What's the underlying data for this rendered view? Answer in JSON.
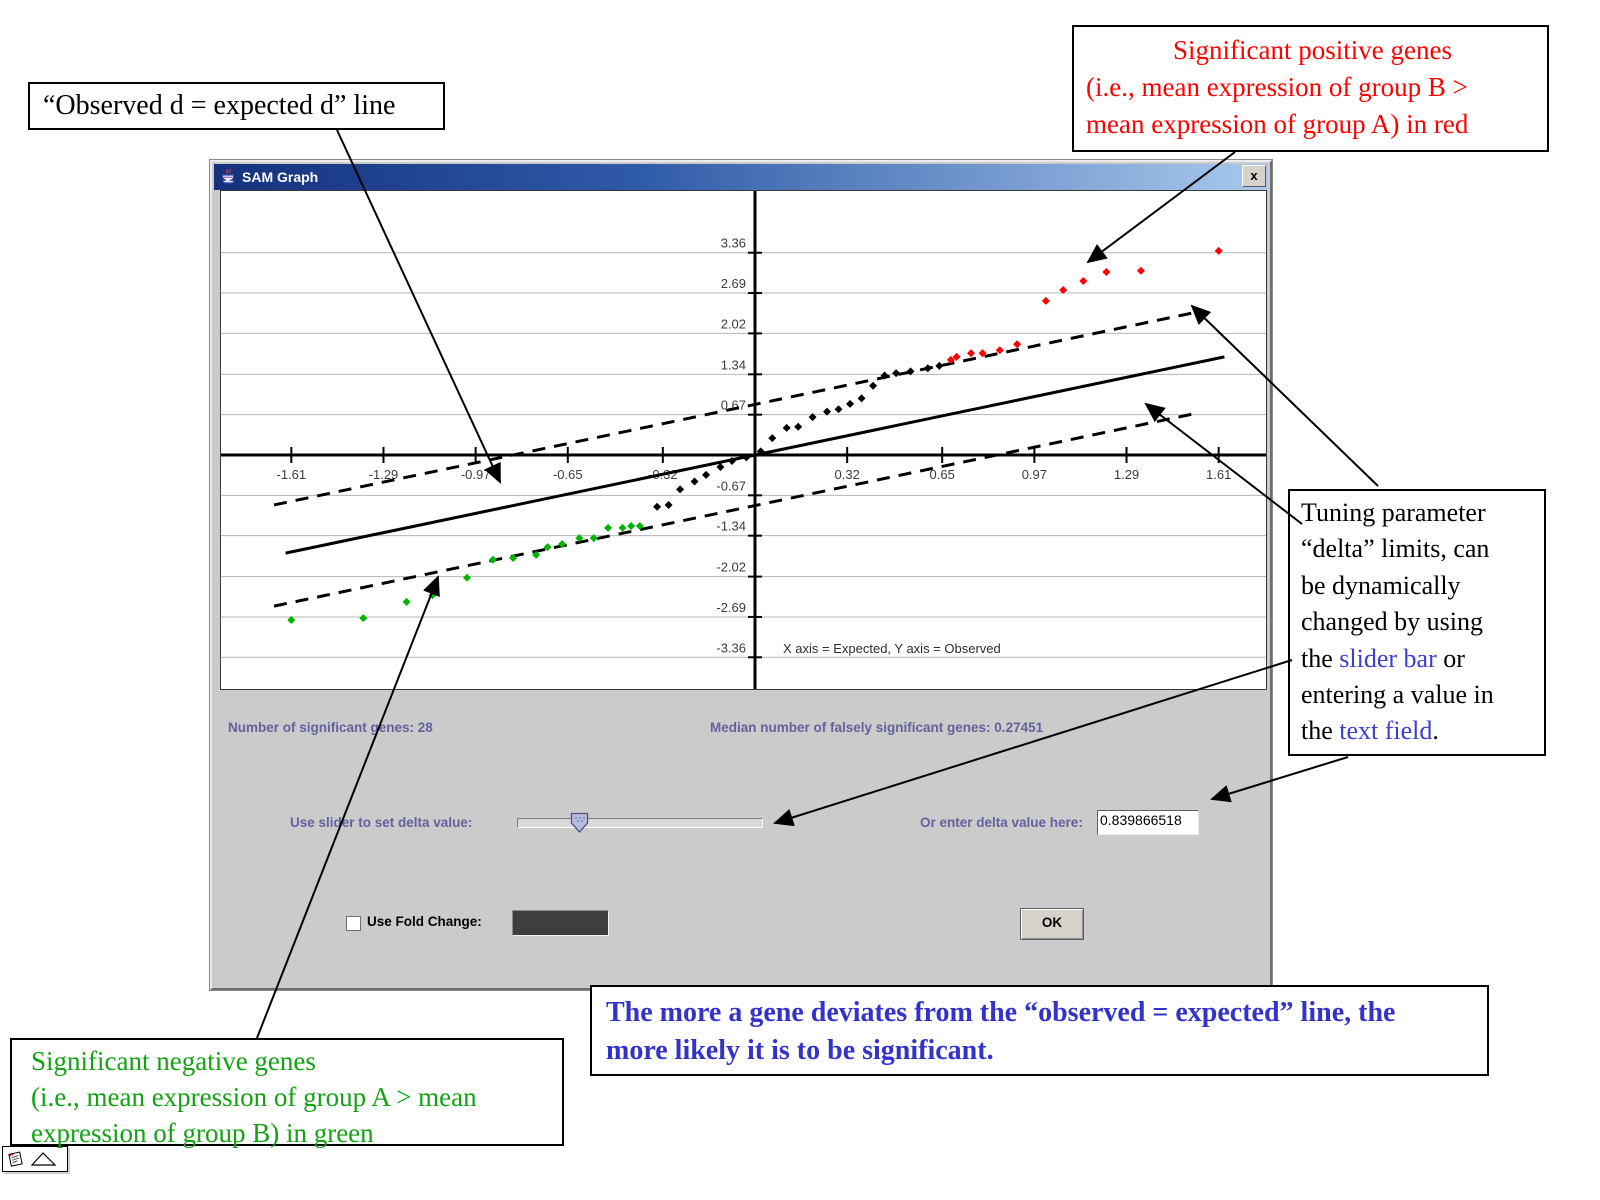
{
  "window": {
    "title": "SAM Graph",
    "close_glyph": "x",
    "stats": {
      "significant": "Number of significant genes: 28",
      "falsely_significant": "Median number of falsely significant genes: 0.27451"
    },
    "slider_label": "Use slider to set delta value:",
    "delta_label": "Or enter delta value here:",
    "delta_value": "0.839866518",
    "fold_change_label": "Use Fold Change:",
    "ok_label": "OK"
  },
  "callouts": {
    "observed_line": "“Observed d = expected d” line",
    "positive": {
      "line1": "Significant positive genes",
      "line2": "(i.e., mean expression of group B  >",
      "line3": "mean expression of  group A) in red"
    },
    "tuning": {
      "line1": "Tuning parameter",
      "line2": "“delta” limits, can",
      "line3": "be dynamically",
      "line4": "changed by using",
      "line5_pre": "the ",
      "line5_link": "slider bar",
      "line5_post": " or",
      "line6": "entering a value in",
      "line7_pre": "the ",
      "line7_link": "text field",
      "line7_post": "."
    },
    "negative": {
      "line1": "Significant negative genes",
      "line2": "(i.e., mean expression of group A > mean",
      "line3": "expression of group B) in green"
    },
    "deviation": {
      "line1": "The more a gene deviates from the “observed = expected” line, the",
      "line2": "more likely it is to be significant."
    }
  },
  "chart_data": {
    "type": "scatter",
    "note": "X axis = Expected, Y axis = Observed",
    "xlabel": "Expected",
    "ylabel": "Observed",
    "xlim": [
      -1.85,
      1.77
    ],
    "ylim": [
      -4.42,
      4.38
    ],
    "grid": "horizontal",
    "x_ticks": [
      "-1.61",
      "-1.29",
      "-0.97",
      "-0.65",
      "-0.32",
      "0.32",
      "0.65",
      "0.97",
      "1.29",
      "1.61"
    ],
    "y_ticks": [
      "3.36",
      "2.69",
      "2.02",
      "1.34",
      "0.67",
      "-0.67",
      "-1.34",
      "-2.02",
      "-2.69",
      "-3.36"
    ],
    "lines": [
      {
        "name": "observed-equals-expected",
        "style": "solid",
        "x1": -1.63,
        "y1": -1.63,
        "x2": 1.63,
        "y2": 1.63
      },
      {
        "name": "upper-delta-limit",
        "style": "dashed",
        "x1": -1.67,
        "y1": -0.83,
        "x2": 1.53,
        "y2": 2.37
      },
      {
        "name": "lower-delta-limit",
        "style": "dashed",
        "x1": -1.67,
        "y1": -2.51,
        "x2": 1.53,
        "y2": 0.69
      }
    ],
    "series": [
      {
        "name": "non-significant genes",
        "color": "#000000",
        "points": [
          [
            -0.34,
            -0.86
          ],
          [
            -0.3,
            -0.83
          ],
          [
            -0.26,
            -0.57
          ],
          [
            -0.21,
            -0.44
          ],
          [
            -0.17,
            -0.33
          ],
          [
            -0.12,
            -0.2
          ],
          [
            -0.08,
            -0.1
          ],
          [
            -0.03,
            -0.04
          ],
          [
            0.02,
            0.06
          ],
          [
            0.06,
            0.28
          ],
          [
            0.11,
            0.45
          ],
          [
            0.15,
            0.47
          ],
          [
            0.2,
            0.63
          ],
          [
            0.25,
            0.72
          ],
          [
            0.29,
            0.76
          ],
          [
            0.33,
            0.85
          ],
          [
            0.37,
            0.94
          ],
          [
            0.41,
            1.15
          ],
          [
            0.45,
            1.32
          ],
          [
            0.49,
            1.36
          ],
          [
            0.54,
            1.39
          ],
          [
            0.6,
            1.44
          ],
          [
            0.64,
            1.48
          ]
        ]
      },
      {
        "name": "significant positive genes",
        "color": "#ff0000",
        "points": [
          [
            0.68,
            1.58
          ],
          [
            0.7,
            1.63
          ],
          [
            0.75,
            1.69
          ],
          [
            0.79,
            1.69
          ],
          [
            0.85,
            1.74
          ],
          [
            0.91,
            1.84
          ],
          [
            1.01,
            2.56
          ],
          [
            1.07,
            2.74
          ],
          [
            1.14,
            2.89
          ],
          [
            1.22,
            3.04
          ],
          [
            1.34,
            3.06
          ],
          [
            1.61,
            3.39
          ]
        ]
      },
      {
        "name": "significant negative genes",
        "color": "#00b400",
        "points": [
          [
            -1.61,
            -2.74
          ],
          [
            -1.36,
            -2.71
          ],
          [
            -1.21,
            -2.44
          ],
          [
            -1.12,
            -2.33
          ],
          [
            -1.0,
            -2.04
          ],
          [
            -0.91,
            -1.74
          ],
          [
            -0.84,
            -1.71
          ],
          [
            -0.76,
            -1.66
          ],
          [
            -0.72,
            -1.53
          ],
          [
            -0.67,
            -1.48
          ],
          [
            -0.61,
            -1.38
          ],
          [
            -0.56,
            -1.38
          ],
          [
            -0.51,
            -1.21
          ],
          [
            -0.46,
            -1.21
          ],
          [
            -0.43,
            -1.18
          ],
          [
            -0.4,
            -1.18
          ]
        ]
      }
    ]
  }
}
